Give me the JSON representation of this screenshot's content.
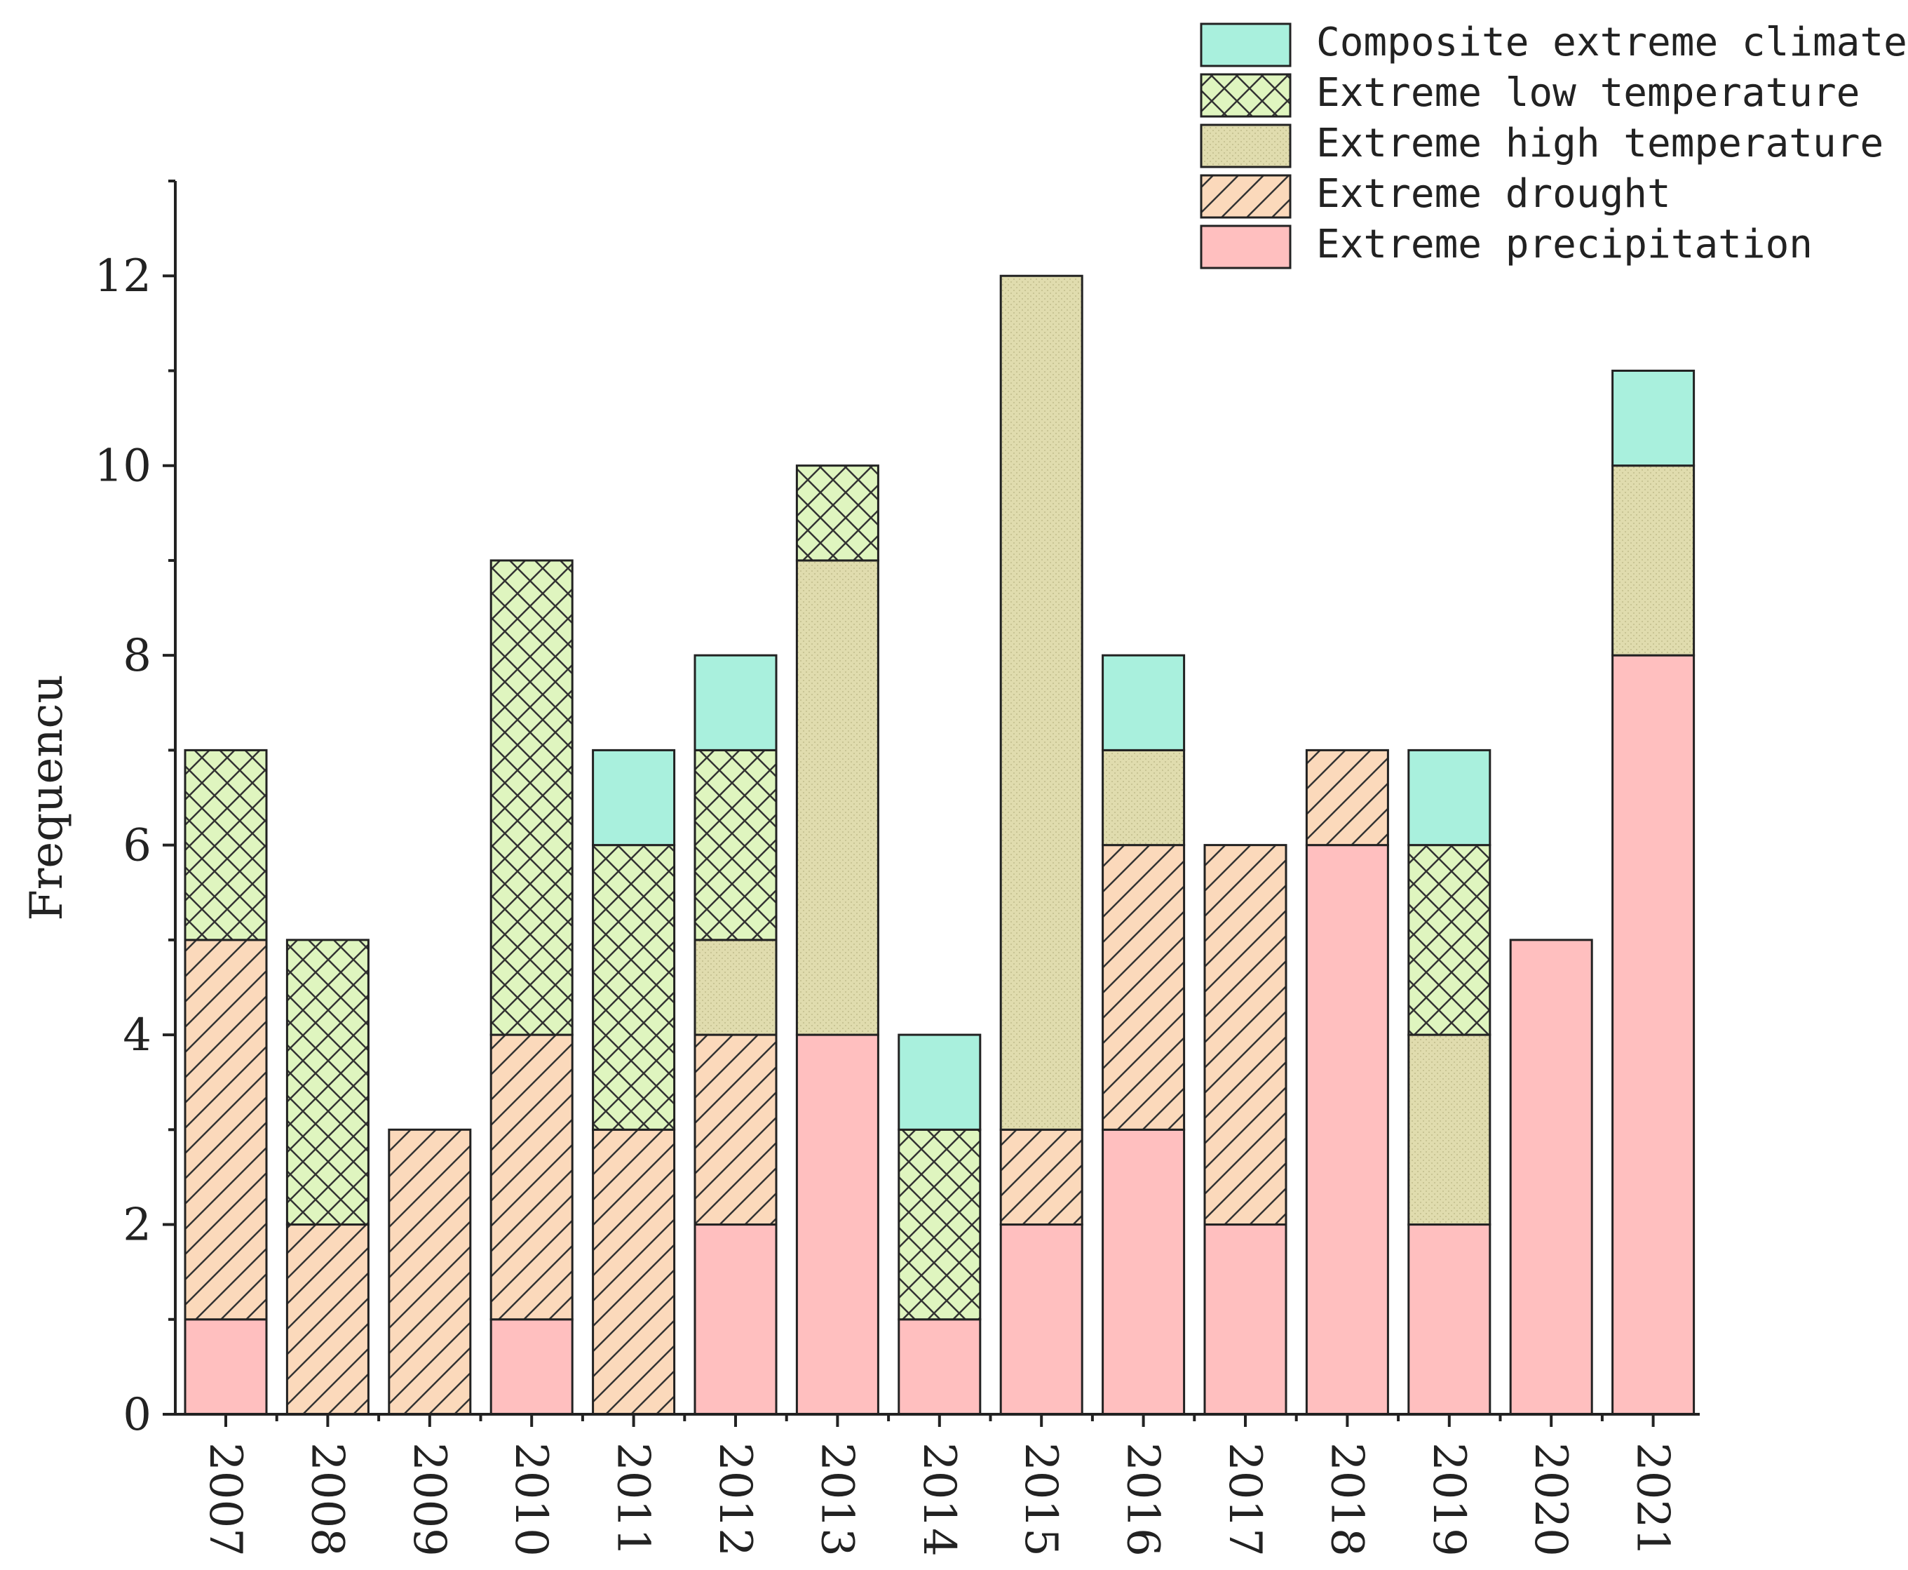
{
  "chart_data": {
    "type": "bar",
    "stacked": true,
    "title": "",
    "xlabel": "",
    "ylabel": "Frequencu",
    "ylim": [
      0,
      13
    ],
    "yticks": [
      0,
      2,
      4,
      6,
      8,
      10,
      12
    ],
    "grid": false,
    "legend_position": "top-right",
    "categories": [
      "2007",
      "2008",
      "2009",
      "2010",
      "2011",
      "2012",
      "2013",
      "2014",
      "2015",
      "2016",
      "2017",
      "2018",
      "2019",
      "2020",
      "2021"
    ],
    "series": [
      {
        "name": "Extreme precipitation",
        "color": "#FFBFBF",
        "pattern": "none",
        "values": [
          1,
          0,
          0,
          1,
          0,
          2,
          4,
          1,
          2,
          3,
          2,
          6,
          2,
          5,
          8
        ]
      },
      {
        "name": "Extreme drought",
        "color": "#FBD9BB",
        "pattern": "diagonal",
        "values": [
          4,
          2,
          3,
          3,
          3,
          2,
          0,
          0,
          1,
          3,
          4,
          1,
          0,
          0,
          0
        ]
      },
      {
        "name": "Extreme high temperature",
        "color": "#E0DCAE",
        "pattern": "dots",
        "values": [
          0,
          0,
          0,
          0,
          0,
          1,
          5,
          0,
          9,
          1,
          0,
          0,
          2,
          0,
          2
        ]
      },
      {
        "name": "Extreme low temperature",
        "color": "#DFF5BF",
        "pattern": "crosshatch",
        "values": [
          2,
          3,
          0,
          5,
          3,
          2,
          1,
          2,
          0,
          0,
          0,
          0,
          2,
          0,
          0
        ]
      },
      {
        "name": "Composite extreme climate",
        "color": "#A9F0DD",
        "pattern": "none",
        "values": [
          0,
          0,
          0,
          0,
          1,
          1,
          0,
          1,
          0,
          1,
          0,
          0,
          1,
          0,
          1
        ]
      }
    ]
  }
}
